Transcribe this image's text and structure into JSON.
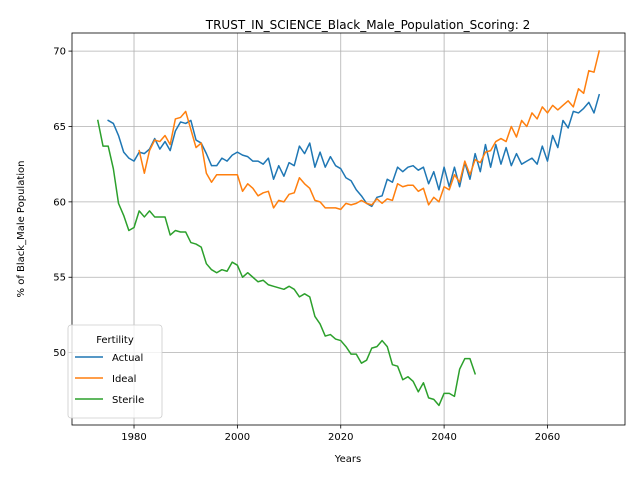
{
  "chart_data": {
    "type": "line",
    "title": "TRUST_IN_SCIENCE_Black_Male_Population_Scoring: 2",
    "xlabel": "Years",
    "ylabel": "% of Black_Male Population",
    "xlim": [
      1968,
      2075
    ],
    "ylim": [
      45.2,
      71.2
    ],
    "xticks": [
      1980,
      2000,
      2020,
      2040,
      2060
    ],
    "yticks": [
      50,
      55,
      60,
      65,
      70
    ],
    "grid": true,
    "legend": {
      "title": "Fertility",
      "position": "lower-left"
    },
    "series": [
      {
        "name": "Actual",
        "color": "#1f77b4",
        "x": [
          1975,
          1976,
          1977,
          1978,
          1979,
          1980,
          1981,
          1982,
          1983,
          1984,
          1985,
          1986,
          1987,
          1988,
          1989,
          1990,
          1991,
          1992,
          1993,
          1994,
          1995,
          1996,
          1997,
          1998,
          1999,
          2000,
          2001,
          2002,
          2003,
          2004,
          2005,
          2006,
          2007,
          2008,
          2009,
          2010,
          2011,
          2012,
          2013,
          2014,
          2015,
          2016,
          2017,
          2018,
          2019,
          2020,
          2021,
          2022,
          2023,
          2024,
          2025,
          2026,
          2027,
          2028,
          2029,
          2030,
          2031,
          2032,
          2033,
          2034,
          2035,
          2036,
          2037,
          2038,
          2039,
          2040,
          2041,
          2042,
          2043,
          2044,
          2045,
          2046,
          2047,
          2048,
          2049,
          2050,
          2051,
          2052,
          2053,
          2054,
          2055,
          2056,
          2057,
          2058,
          2059,
          2060,
          2061,
          2062,
          2063,
          2064,
          2065,
          2066,
          2067,
          2068,
          2069,
          2070
        ],
        "y": [
          65.4,
          65.2,
          64.4,
          63.3,
          62.9,
          62.7,
          63.3,
          63.2,
          63.5,
          64.2,
          63.5,
          64.0,
          63.4,
          64.7,
          65.3,
          65.2,
          65.4,
          64.1,
          63.9,
          63.2,
          62.4,
          62.4,
          62.9,
          62.7,
          63.1,
          63.3,
          63.1,
          63.0,
          62.7,
          62.7,
          62.5,
          62.9,
          61.5,
          62.4,
          61.7,
          62.6,
          62.4,
          63.7,
          63.2,
          63.9,
          62.3,
          63.3,
          62.3,
          63.0,
          62.4,
          62.2,
          61.6,
          61.4,
          60.8,
          60.4,
          59.9,
          59.7,
          60.3,
          60.4,
          61.5,
          61.3,
          62.3,
          62.0,
          62.3,
          62.4,
          62.1,
          62.3,
          61.2,
          62.0,
          60.8,
          62.3,
          61.0,
          62.3,
          61.0,
          62.6,
          61.5,
          63.2,
          62.0,
          63.8,
          62.3,
          63.8,
          62.5,
          63.6,
          62.4,
          63.2,
          62.5,
          62.7,
          62.9,
          62.5,
          63.7,
          62.7,
          64.4,
          63.6,
          65.4,
          64.9,
          66.0,
          65.9,
          66.2,
          66.6,
          65.9,
          67.1
        ]
      },
      {
        "name": "Ideal",
        "color": "#ff7f0e",
        "x": [
          1981,
          1982,
          1983,
          1984,
          1985,
          1986,
          1987,
          1988,
          1989,
          1990,
          1991,
          1992,
          1993,
          1994,
          1995,
          1996,
          1997,
          1998,
          1999,
          2000,
          2001,
          2002,
          2003,
          2004,
          2005,
          2006,
          2007,
          2008,
          2009,
          2010,
          2011,
          2012,
          2013,
          2014,
          2015,
          2016,
          2017,
          2018,
          2019,
          2020,
          2021,
          2022,
          2023,
          2024,
          2025,
          2026,
          2027,
          2028,
          2029,
          2030,
          2031,
          2032,
          2033,
          2034,
          2035,
          2036,
          2037,
          2038,
          2039,
          2040,
          2041,
          2042,
          2043,
          2044,
          2045,
          2046,
          2047,
          2048,
          2049,
          2050,
          2051,
          2052,
          2053,
          2054,
          2055,
          2056,
          2057,
          2058,
          2059,
          2060,
          2061,
          2062,
          2063,
          2064,
          2065,
          2066,
          2067,
          2068,
          2069,
          2070
        ],
        "y": [
          63.4,
          61.9,
          63.4,
          64.1,
          64.0,
          64.4,
          63.8,
          65.5,
          65.6,
          66.0,
          64.8,
          63.6,
          63.9,
          61.9,
          61.3,
          61.8,
          61.8,
          61.8,
          61.8,
          61.8,
          60.7,
          61.2,
          60.9,
          60.4,
          60.6,
          60.7,
          59.6,
          60.1,
          60.0,
          60.5,
          60.6,
          61.6,
          61.2,
          60.9,
          60.1,
          60.0,
          59.6,
          59.6,
          59.6,
          59.5,
          59.9,
          59.8,
          59.9,
          60.1,
          59.9,
          59.8,
          60.2,
          59.9,
          60.2,
          60.1,
          61.2,
          61.0,
          61.1,
          61.1,
          60.7,
          60.9,
          59.8,
          60.3,
          60.0,
          61.0,
          60.8,
          61.8,
          61.3,
          62.7,
          61.8,
          62.8,
          62.6,
          63.3,
          63.4,
          64.0,
          64.2,
          64.0,
          65.0,
          64.3,
          65.4,
          65.0,
          65.9,
          65.5,
          66.3,
          65.9,
          66.4,
          66.1,
          66.4,
          66.7,
          66.3,
          67.5,
          67.2,
          68.7,
          68.6,
          70.0
        ]
      },
      {
        "name": "Sterile",
        "color": "#2ca02c",
        "x": [
          1973,
          1974,
          1975,
          1976,
          1977,
          1978,
          1979,
          1980,
          1981,
          1982,
          1983,
          1984,
          1985,
          1986,
          1987,
          1988,
          1989,
          1990,
          1991,
          1992,
          1993,
          1994,
          1995,
          1996,
          1997,
          1998,
          1999,
          2000,
          2001,
          2002,
          2003,
          2004,
          2005,
          2006,
          2007,
          2008,
          2009,
          2010,
          2011,
          2012,
          2013,
          2014,
          2015,
          2016,
          2017,
          2018,
          2019,
          2020,
          2021,
          2022,
          2023,
          2024,
          2025,
          2026,
          2027,
          2028,
          2029,
          2030,
          2031,
          2032,
          2033,
          2034,
          2035,
          2036,
          2037,
          2038,
          2039,
          2040,
          2041,
          2042,
          2043,
          2044,
          2045,
          2046
        ],
        "y": [
          65.4,
          63.7,
          63.7,
          62.2,
          59.9,
          59.1,
          58.1,
          58.3,
          59.4,
          59.0,
          59.4,
          59.0,
          59.0,
          59.0,
          57.8,
          58.1,
          58.0,
          58.0,
          57.3,
          57.2,
          57.0,
          55.9,
          55.5,
          55.3,
          55.5,
          55.4,
          56.0,
          55.8,
          55.0,
          55.3,
          55.0,
          54.7,
          54.8,
          54.5,
          54.4,
          54.3,
          54.2,
          54.4,
          54.2,
          53.7,
          53.9,
          53.7,
          52.4,
          51.9,
          51.1,
          51.2,
          50.9,
          50.8,
          50.4,
          49.9,
          49.9,
          49.3,
          49.5,
          50.3,
          50.4,
          50.8,
          50.4,
          49.2,
          49.1,
          48.2,
          48.4,
          48.1,
          47.4,
          48.0,
          47.0,
          46.9,
          46.5,
          47.3,
          47.3,
          47.1,
          48.9,
          49.6,
          49.6,
          48.6
        ]
      }
    ]
  }
}
